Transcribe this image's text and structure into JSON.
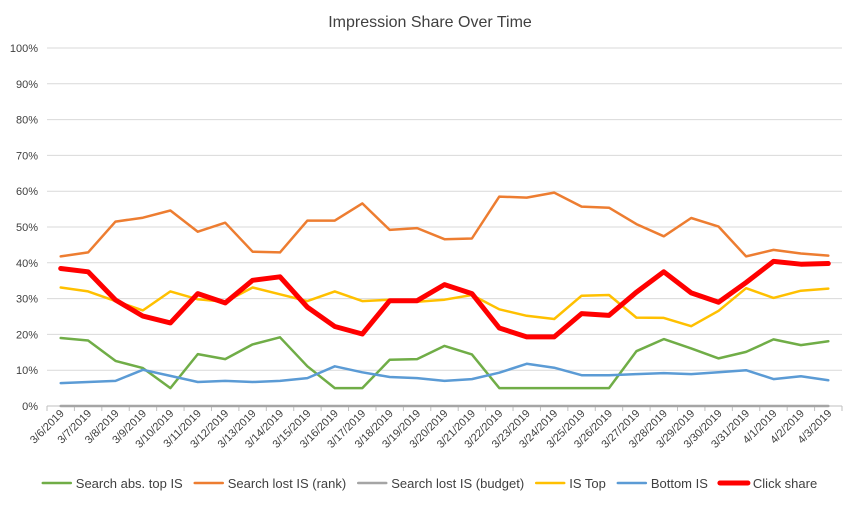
{
  "chart_data": {
    "type": "line",
    "title": "Impression Share Over Time",
    "xlabel": "",
    "ylabel": "",
    "ylim": [
      0,
      1
    ],
    "y_ticks": [
      "0%",
      "10%",
      "20%",
      "30%",
      "40%",
      "50%",
      "60%",
      "70%",
      "80%",
      "90%",
      "100%"
    ],
    "categories": [
      "3/6/2019",
      "3/7/2019",
      "3/8/2019",
      "3/9/2019",
      "3/10/2019",
      "3/11/2019",
      "3/12/2019",
      "3/13/2019",
      "3/14/2019",
      "3/15/2019",
      "3/16/2019",
      "3/17/2019",
      "3/18/2019",
      "3/19/2019",
      "3/20/2019",
      "3/21/2019",
      "3/22/2019",
      "3/23/2019",
      "3/24/2019",
      "3/25/2019",
      "3/26/2019",
      "3/27/2019",
      "3/28/2019",
      "3/29/2019",
      "3/30/2019",
      "3/31/2019",
      "4/1/2019",
      "4/2/2019",
      "4/3/2019"
    ],
    "grid": true,
    "legend_position": "bottom",
    "series": [
      {
        "name": "Search abs. top IS",
        "color": "#70ad47",
        "width": 2.5,
        "values": [
          0.19,
          0.183,
          0.126,
          0.106,
          0.05,
          0.145,
          0.131,
          0.172,
          0.192,
          0.111,
          0.05,
          0.05,
          0.129,
          0.131,
          0.168,
          0.144,
          0.05,
          0.05,
          0.05,
          0.05,
          0.05,
          0.153,
          0.187,
          0.161,
          0.133,
          0.151,
          0.186,
          0.17,
          0.181
        ]
      },
      {
        "name": "Search lost IS (rank)",
        "color": "#ed7d31",
        "width": 2.5,
        "values": [
          0.418,
          0.429,
          0.515,
          0.526,
          0.546,
          0.487,
          0.512,
          0.431,
          0.429,
          0.518,
          0.518,
          0.566,
          0.492,
          0.497,
          0.466,
          0.468,
          0.585,
          0.582,
          0.596,
          0.557,
          0.554,
          0.508,
          0.474,
          0.525,
          0.501,
          0.418,
          0.436,
          0.426,
          0.42
        ]
      },
      {
        "name": "Search lost IS (budget)",
        "color": "#a5a5a5",
        "width": 2.5,
        "values": [
          0,
          0,
          0,
          0,
          0,
          0,
          0,
          0,
          0,
          0,
          0,
          0,
          0,
          0,
          0,
          0,
          0,
          0,
          0,
          0,
          0,
          0,
          0,
          0,
          0,
          0,
          0,
          0,
          0
        ]
      },
      {
        "name": "IS Top",
        "color": "#ffc000",
        "width": 2.5,
        "values": [
          0.331,
          0.32,
          0.293,
          0.267,
          0.32,
          0.298,
          0.291,
          0.331,
          0.312,
          0.293,
          0.32,
          0.293,
          0.297,
          0.291,
          0.297,
          0.31,
          0.27,
          0.252,
          0.243,
          0.308,
          0.31,
          0.247,
          0.246,
          0.223,
          0.266,
          0.329,
          0.302,
          0.322,
          0.328
        ]
      },
      {
        "name": "Bottom IS",
        "color": "#5b9bd5",
        "width": 2.5,
        "values": [
          0.064,
          0.067,
          0.07,
          0.101,
          0.084,
          0.067,
          0.07,
          0.067,
          0.07,
          0.078,
          0.111,
          0.094,
          0.081,
          0.078,
          0.07,
          0.075,
          0.093,
          0.118,
          0.107,
          0.086,
          0.086,
          0.089,
          0.092,
          0.089,
          0.094,
          0.1,
          0.075,
          0.083,
          0.072
        ]
      },
      {
        "name": "Click share",
        "color": "#ff0000",
        "width": 5,
        "values": [
          0.384,
          0.375,
          0.296,
          0.251,
          0.232,
          0.314,
          0.288,
          0.351,
          0.361,
          0.276,
          0.222,
          0.201,
          0.294,
          0.294,
          0.339,
          0.314,
          0.218,
          0.193,
          0.193,
          0.258,
          0.253,
          0.318,
          0.375,
          0.316,
          0.29,
          0.345,
          0.404,
          0.396,
          0.398
        ]
      }
    ]
  }
}
